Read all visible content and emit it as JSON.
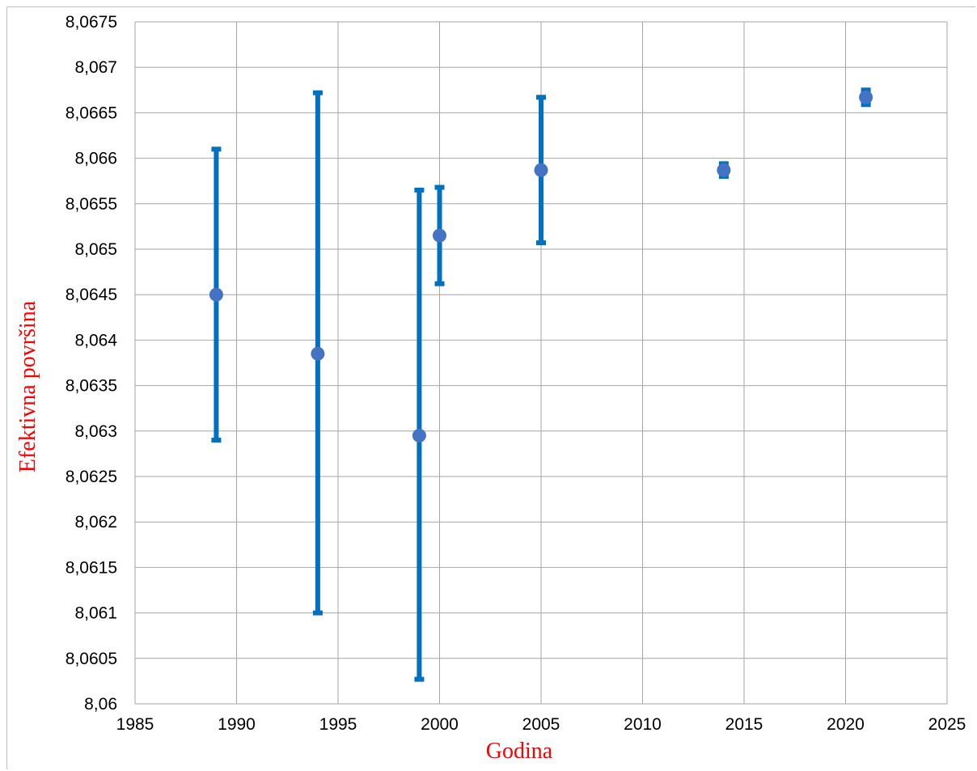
{
  "chart_data": {
    "type": "scatter",
    "xlabel": "Godina",
    "ylabel": "Efektivna površina",
    "xlim": [
      1985,
      2025
    ],
    "ylim": [
      8.06,
      8.0675
    ],
    "x_ticks": [
      "1985",
      "1990",
      "1995",
      "2000",
      "2005",
      "2010",
      "2015",
      "2020",
      "2025"
    ],
    "y_ticks": [
      "8,06",
      "8,0605",
      "8,061",
      "8,0615",
      "8,062",
      "8,0625",
      "8,063",
      "8,0635",
      "8,064",
      "8,0645",
      "8,065",
      "8,0655",
      "8,066",
      "8,0665",
      "8,067",
      "8,0675"
    ],
    "grid": true,
    "series": [
      {
        "points": [
          {
            "x": 1989,
            "y": 8.0645,
            "y_low": 8.0629,
            "y_high": 8.0661
          },
          {
            "x": 1994,
            "y": 8.06385,
            "y_low": 8.061,
            "y_high": 8.06672
          },
          {
            "x": 1999,
            "y": 8.06295,
            "y_low": 8.06027,
            "y_high": 8.06565
          },
          {
            "x": 2000,
            "y": 8.06515,
            "y_low": 8.06462,
            "y_high": 8.06568
          },
          {
            "x": 2005,
            "y": 8.06587,
            "y_low": 8.06507,
            "y_high": 8.06667
          },
          {
            "x": 2014,
            "y": 8.06587,
            "y_low": 8.0658,
            "y_high": 8.06594
          },
          {
            "x": 2021,
            "y": 8.06667,
            "y_low": 8.06659,
            "y_high": 8.06675
          }
        ]
      }
    ],
    "colors": {
      "marker": "#4472c4",
      "error_bar": "#0070c0",
      "grid": "#a6a6a6",
      "axis_title": "#ff0000"
    }
  }
}
